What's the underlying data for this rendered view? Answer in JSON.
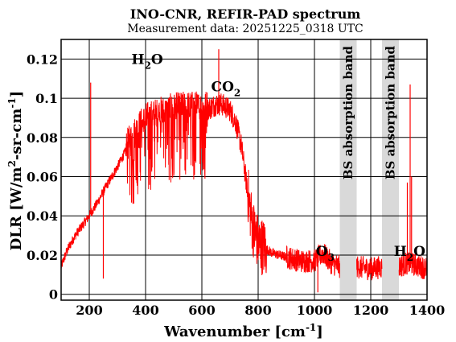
{
  "chart_data": {
    "type": "line",
    "title": "INO-CNR, REFIR-PAD spectrum",
    "subtitle": "Measurement data: 20251225_0318 UTC",
    "xlabel": "Wavenumber [cm^-1]",
    "ylabel": "DLR [W/m^2-sr-cm^-1]",
    "xlim": [
      100,
      1400
    ],
    "ylim": [
      -0.003,
      0.13
    ],
    "x_ticks": [
      200,
      400,
      600,
      800,
      1000,
      1200,
      1400
    ],
    "y_ticks": [
      0,
      0.02,
      0.04,
      0.06,
      0.08,
      0.1,
      0.12
    ],
    "y_tick_labels": [
      "0",
      "0.02",
      "0.04",
      "0.06",
      "0.08",
      "0.1",
      "0.12"
    ],
    "grid": true,
    "line_color": "#ff0000",
    "band_color": "#d9d9d9",
    "bands": [
      {
        "x0": 1090,
        "x1": 1150,
        "label": "BS absorption band"
      },
      {
        "x0": 1240,
        "x1": 1300,
        "label": "BS absorption band"
      }
    ],
    "annotations": [
      {
        "base": "H",
        "sub": "2",
        "rest": "O",
        "x": 350,
        "y": 0.1175
      },
      {
        "base": "CO",
        "sub": "2",
        "rest": "",
        "x": 633,
        "y": 0.1035
      },
      {
        "base": "O",
        "sub": "3",
        "rest": "",
        "x": 1005,
        "y": 0.0195
      },
      {
        "base": "H",
        "sub": "2",
        "rest": "O",
        "x": 1282,
        "y": 0.0195
      }
    ],
    "spectrum_envelope": {
      "x": [
        100,
        120,
        150,
        180,
        200,
        230,
        260,
        300,
        340,
        370,
        400,
        450,
        500,
        550,
        600,
        630,
        650,
        670,
        700,
        720,
        740,
        760,
        780,
        800,
        850,
        900,
        950,
        1000,
        1030,
        1060,
        1090,
        1150,
        1200,
        1240,
        1300,
        1330,
        1360,
        1400
      ],
      "y": [
        0.014,
        0.022,
        0.03,
        0.036,
        0.04,
        0.047,
        0.055,
        0.065,
        0.076,
        0.083,
        0.088,
        0.091,
        0.093,
        0.094,
        0.094,
        0.095,
        0.097,
        0.097,
        0.094,
        0.088,
        0.076,
        0.055,
        0.035,
        0.026,
        0.021,
        0.019,
        0.017,
        0.017,
        0.021,
        0.016,
        0.014,
        0.014,
        0.013,
        0.014,
        0.014,
        0.016,
        0.015,
        0.013
      ]
    },
    "spikes": [
      {
        "x": 205,
        "y": 0.108
      },
      {
        "x": 250,
        "y": 0.008
      },
      {
        "x": 660,
        "y": 0.125
      },
      {
        "x": 1012,
        "y": 0.001
      },
      {
        "x": 1330,
        "y": 0.057
      },
      {
        "x": 1340,
        "y": 0.107
      },
      {
        "x": 1345,
        "y": 0.06
      }
    ]
  }
}
